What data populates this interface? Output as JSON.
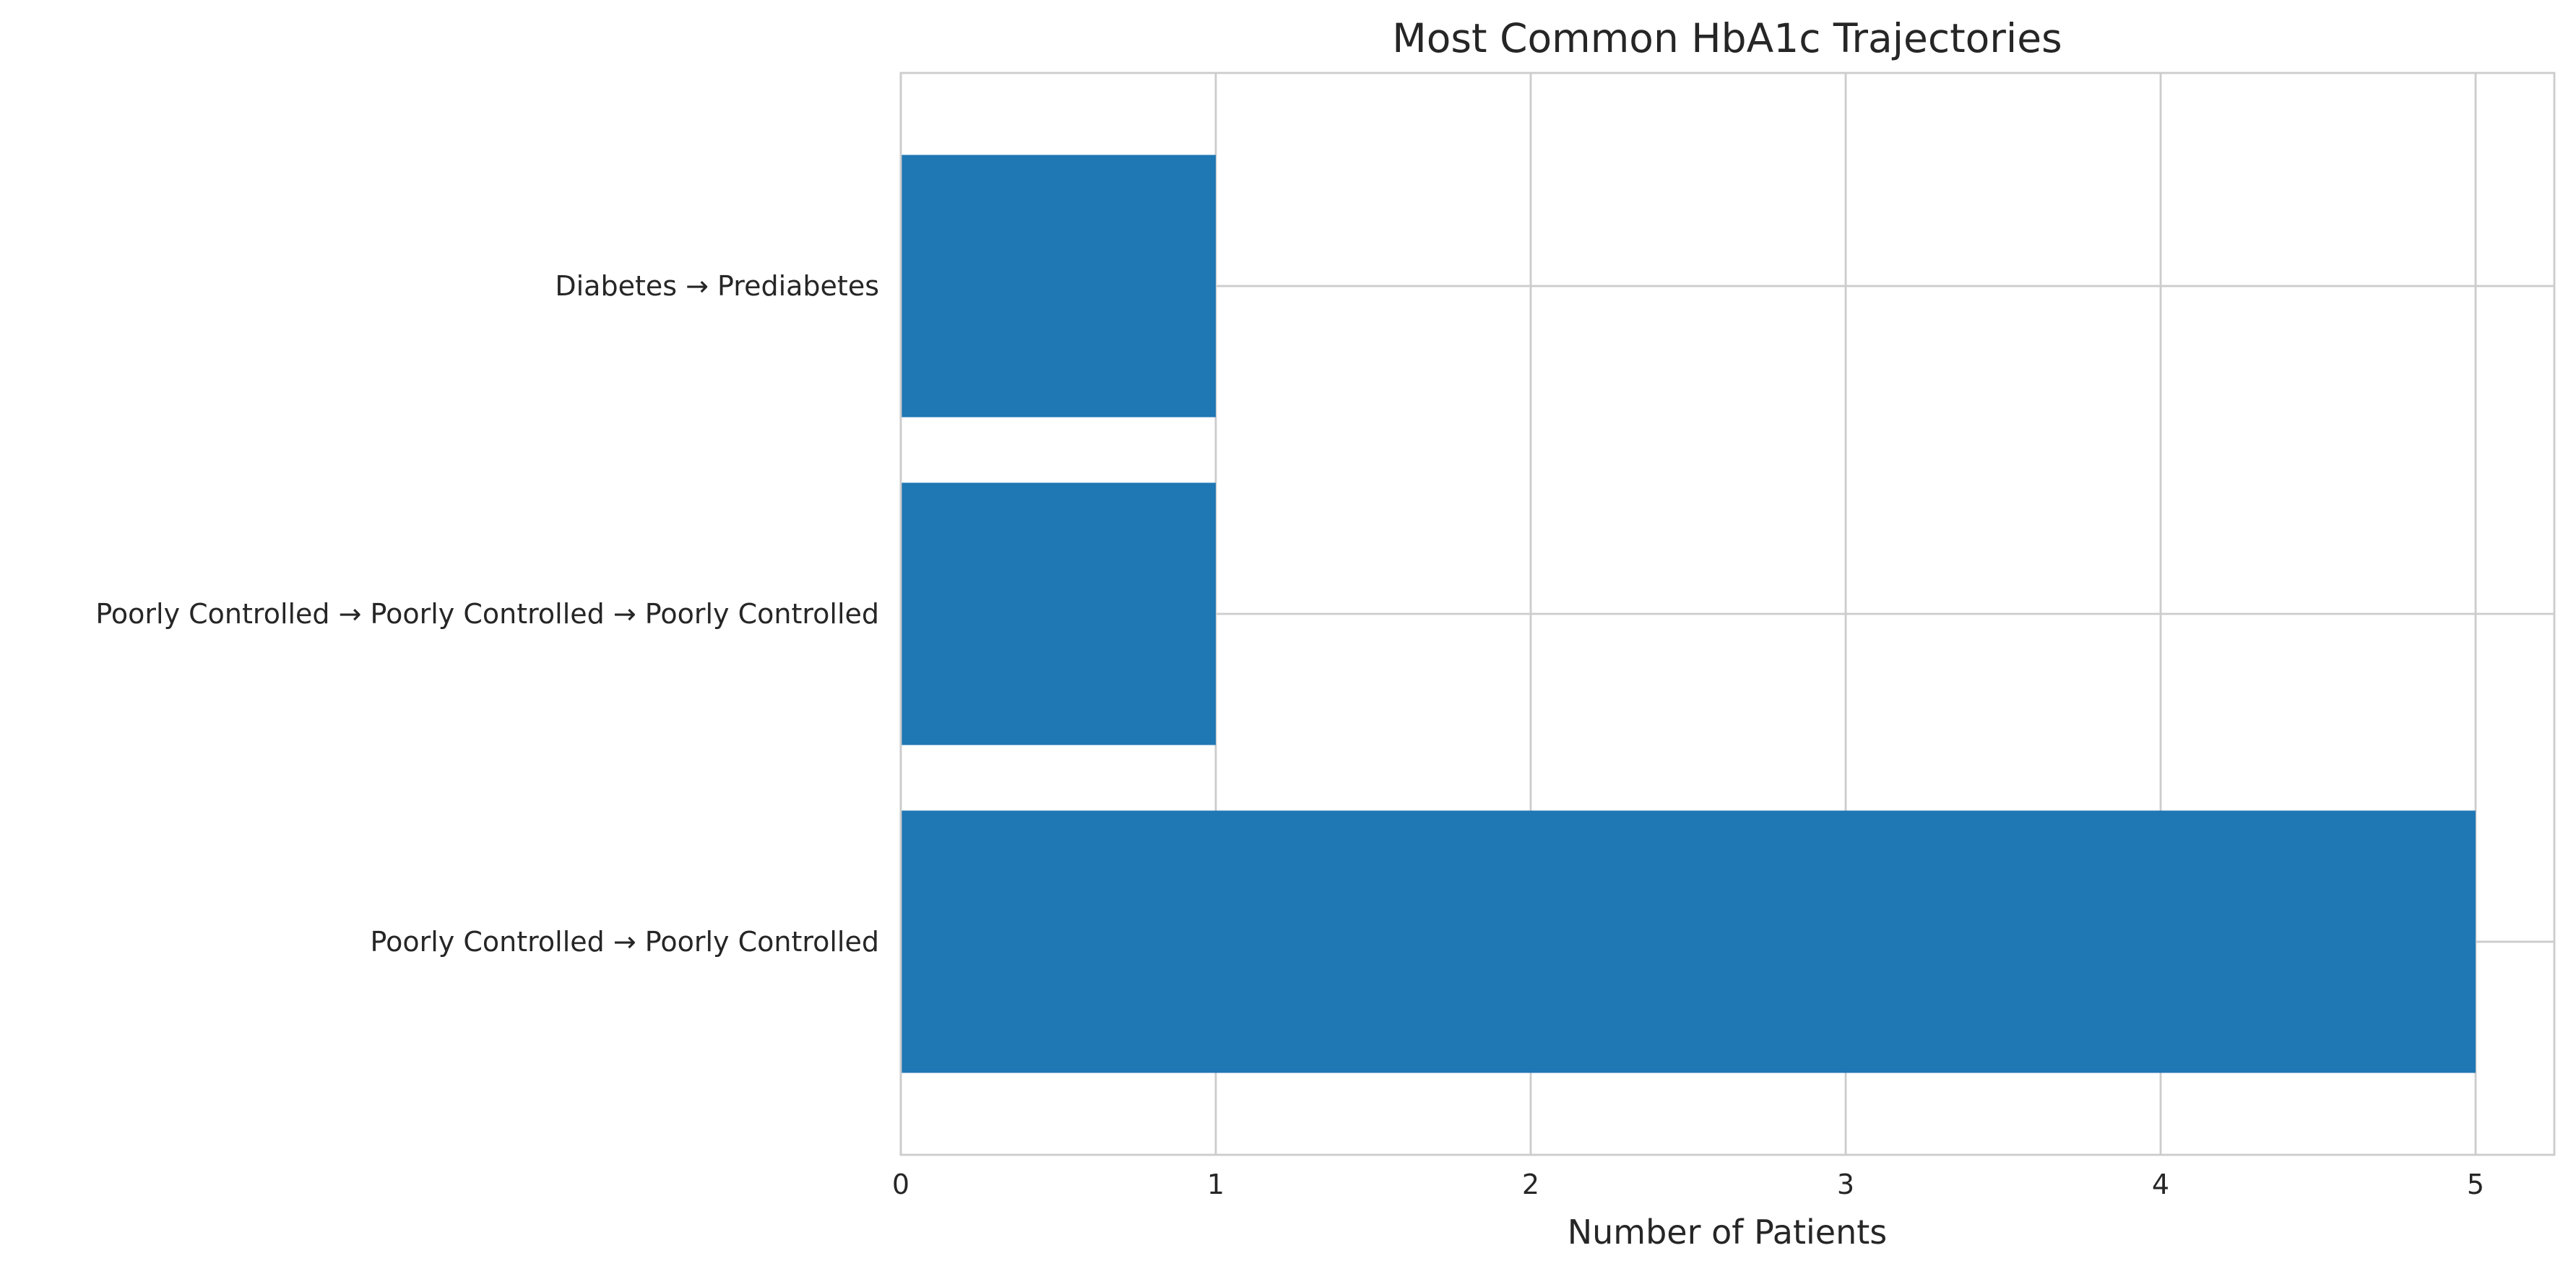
{
  "chart_data": {
    "type": "bar",
    "orientation": "horizontal",
    "title": "Most Common HbA1c Trajectories",
    "xlabel": "Number of Patients",
    "ylabel": "",
    "categories": [
      "Poorly Controlled → Poorly Controlled",
      "Poorly Controlled → Poorly Controlled → Poorly Controlled",
      "Diabetes → Prediabetes"
    ],
    "values": [
      5,
      1,
      1
    ],
    "xlim": [
      0,
      5.25
    ],
    "xticks": [
      "0",
      "1",
      "2",
      "3",
      "4",
      "5"
    ],
    "grid": true,
    "bar_color": "#1f77b4"
  }
}
